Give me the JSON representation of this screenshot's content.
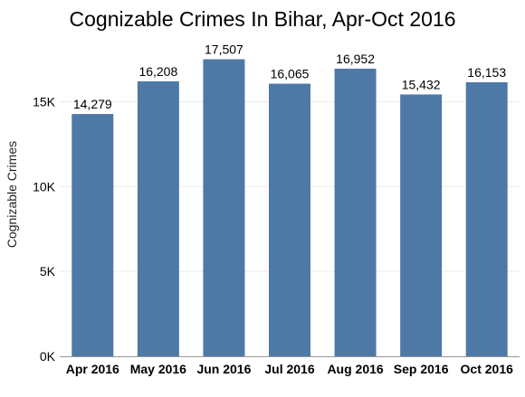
{
  "chart_data": {
    "type": "bar",
    "title": "Cognizable Crimes In Bihar, Apr-Oct 2016",
    "xlabel": "",
    "ylabel": "Cognizable Crimes",
    "categories": [
      "Apr 2016",
      "May 2016",
      "Jun 2016",
      "Jul 2016",
      "Aug 2016",
      "Sep 2016",
      "Oct 2016"
    ],
    "values": [
      14279,
      16208,
      17507,
      16065,
      16952,
      15432,
      16153
    ],
    "data_labels": [
      "14,279",
      "16,208",
      "17,507",
      "16,065",
      "16,952",
      "15,432",
      "16,153"
    ],
    "ylim": [
      0,
      18600
    ],
    "yticks": [
      0,
      5000,
      10000,
      15000
    ],
    "ytick_labels": [
      "0K",
      "5K",
      "10K",
      "15K"
    ],
    "grid": true,
    "legend": "none",
    "colors": {
      "bar": "#4e79a7",
      "text": "#000000",
      "grid": "#ececec",
      "axis": "#9a9a9a"
    }
  }
}
